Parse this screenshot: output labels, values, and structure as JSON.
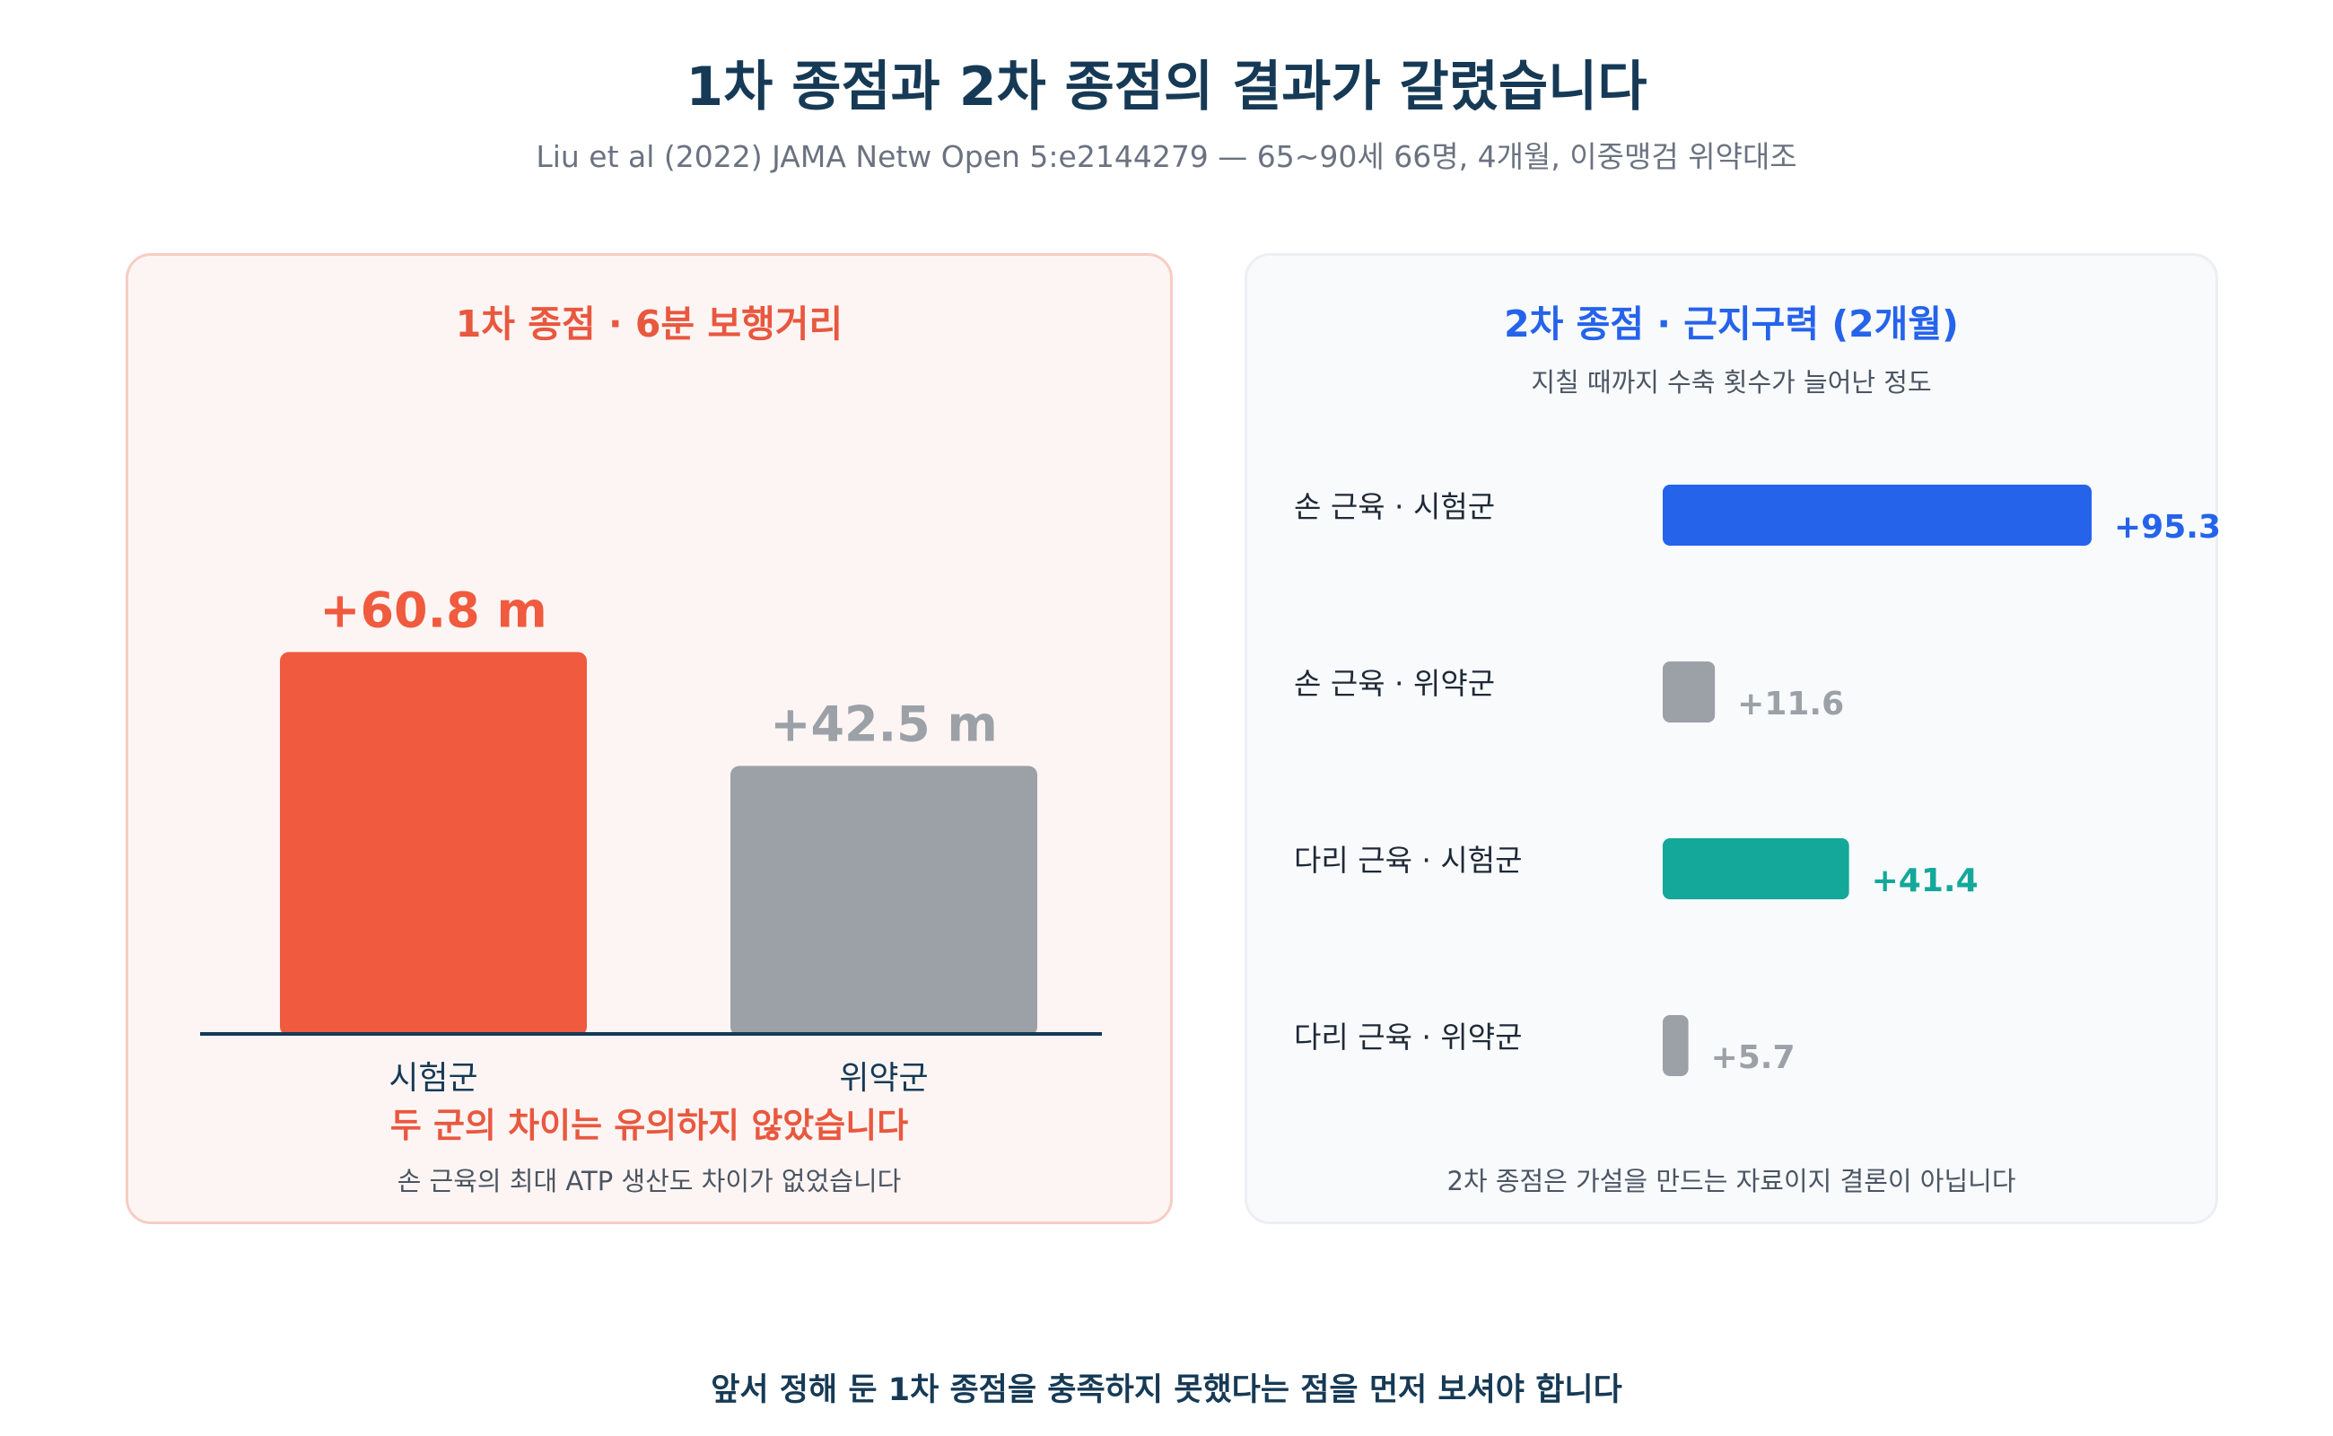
{
  "header": {
    "title": "1차 종점과 2차 종점의 결과가 갈렸습니다",
    "subtitle": "Liu et al (2022) JAMA Netw Open 5:e2144279 — 65~90세 66명, 4개월, 이중맹검 위약대조"
  },
  "colors": {
    "trial": "#f05a3e",
    "placebo": "#9ca1a8",
    "hand_trial": "#2563eb",
    "leg_trial": "#14a89a",
    "navy": "#163a56"
  },
  "chart_data": [
    {
      "type": "bar",
      "title": "1차 종점 · 6분 보행거리",
      "categories": [
        "시험군",
        "위약군"
      ],
      "values": [
        60.8,
        42.5
      ],
      "value_labels": [
        "+60.8 m",
        "+42.5 m"
      ],
      "ylim": [
        0,
        75
      ],
      "grid": false,
      "note_primary": "두 군의 차이는 유의하지 않았습니다",
      "note_secondary": "손 근육의 최대 ATP 생산도 차이가 없었습니다"
    },
    {
      "type": "bar",
      "orientation": "horizontal",
      "title": "2차 종점 · 근지구력 (2개월)",
      "subtitle": "지칠 때까지 수축 횟수가 늘어난 정도",
      "categories": [
        "손 근육 · 시험군",
        "손 근육 · 위약군",
        "다리 근육 · 시험군",
        "다리 근육 · 위약군"
      ],
      "values": [
        95.3,
        11.6,
        41.4,
        5.7
      ],
      "value_labels": [
        "+95.3",
        "+11.6",
        "+41.4",
        "+5.7"
      ],
      "xlim": [
        0,
        95.3
      ],
      "grid": false,
      "note": "2차 종점은 가설을 만드는 자료이지 결론이 아닙니다"
    }
  ],
  "footer": {
    "conclusion": "앞서 정해 둔 1차 종점을 충족하지 못했다는 점을 먼저 보셔야 합니다"
  }
}
